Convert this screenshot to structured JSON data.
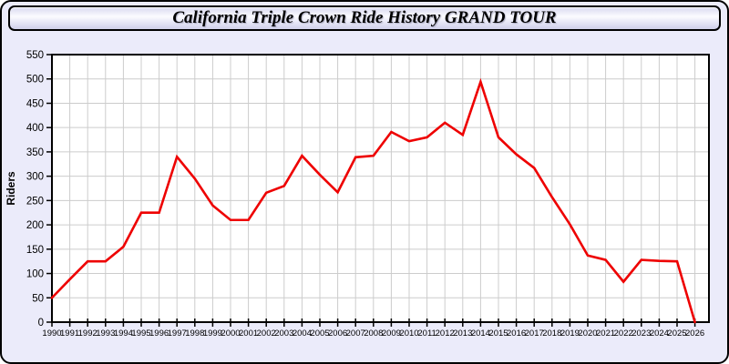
{
  "header": {
    "title": "California Triple Crown Ride History GRAND TOUR"
  },
  "y_axis": {
    "label": "Riders"
  },
  "colors": {
    "page_bg": "#ebebfa",
    "plot_bg": "#ffffff",
    "grid": "#cccccc",
    "frame": "#000000",
    "line": "#ee0000"
  },
  "chart_data": {
    "type": "line",
    "title": "California Triple Crown Ride History GRAND TOUR",
    "xlabel": "",
    "ylabel": "Riders",
    "ylim": [
      0,
      550
    ],
    "ytick_step": 50,
    "grid": true,
    "legend_position": "none",
    "series_name": "GRAND TOUR riders",
    "categories": [
      1990,
      1991,
      1992,
      1993,
      1994,
      1995,
      1996,
      1997,
      1998,
      1999,
      2000,
      2001,
      2002,
      2003,
      2004,
      2005,
      2006,
      2007,
      2008,
      2009,
      2010,
      2011,
      2012,
      2013,
      2014,
      2015,
      2016,
      2017,
      2018,
      2019,
      2020,
      2021,
      2022,
      2023,
      2024,
      2025,
      2026
    ],
    "values": [
      50,
      88,
      125,
      125,
      155,
      225,
      225,
      340,
      295,
      240,
      210,
      210,
      266,
      280,
      342,
      303,
      267,
      339,
      342,
      391,
      372,
      380,
      410,
      385,
      494,
      380,
      345,
      317,
      257,
      201,
      137,
      128,
      83,
      128,
      126,
      125,
      0
    ]
  }
}
